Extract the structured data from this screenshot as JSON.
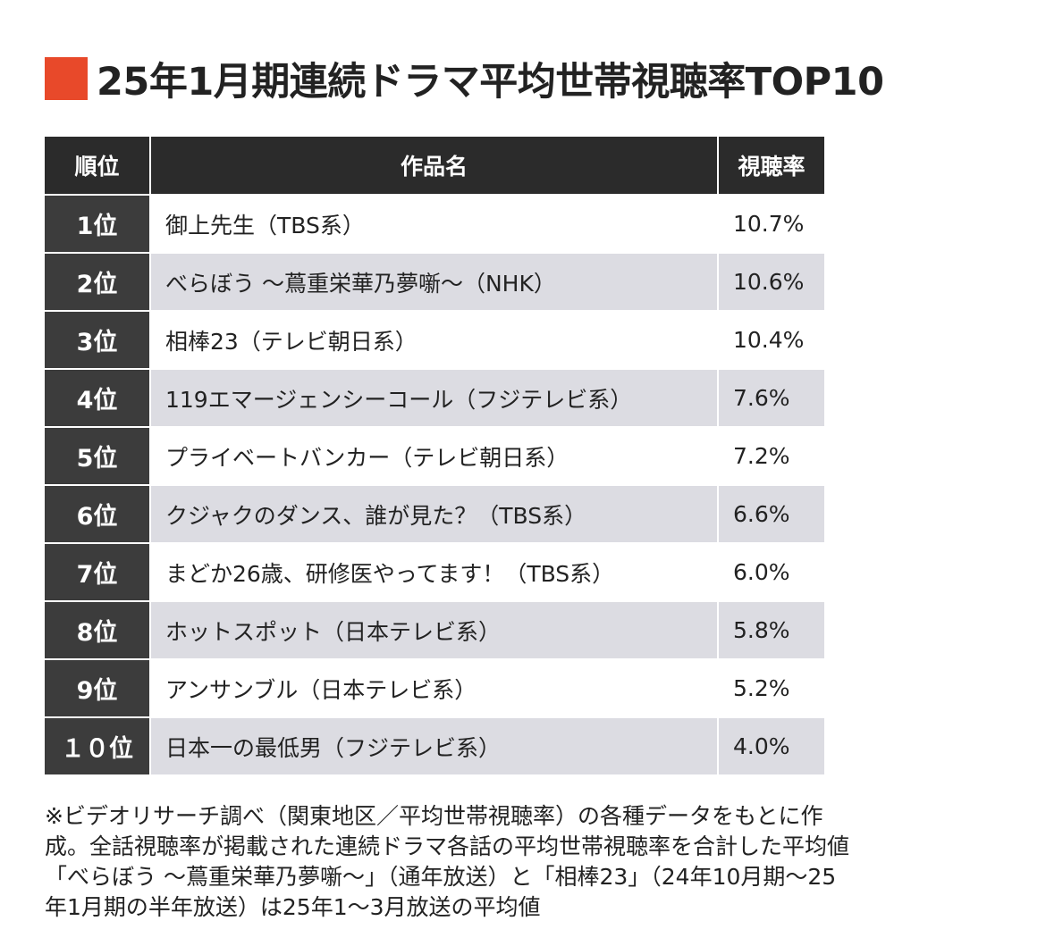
{
  "title": {
    "accent_color": "#e8492a",
    "mark_icon": "square-icon",
    "text": "25年1月期連続ドラマ平均世帯視聴率TOP10"
  },
  "table": {
    "headers": {
      "rank": "順位",
      "title": "作品名",
      "rate": "視聴率"
    },
    "rows": [
      {
        "rank": "1位",
        "title": "御上先生（TBS系）",
        "rate": "10.7%"
      },
      {
        "rank": "2位",
        "title": "べらぼう ～蔦重栄華乃夢噺～（NHK）",
        "rate": "10.6%"
      },
      {
        "rank": "3位",
        "title": "相棒23（テレビ朝日系）",
        "rate": "10.4%"
      },
      {
        "rank": "4位",
        "title": "119エマージェンシーコール（フジテレビ系）",
        "rate": "7.6%"
      },
      {
        "rank": "5位",
        "title": "プライベートバンカー（テレビ朝日系）",
        "rate": "7.2%"
      },
      {
        "rank": "6位",
        "title": "クジャクのダンス、誰が見た？（TBS系）",
        "rate": "6.6%"
      },
      {
        "rank": "7位",
        "title": "まどか26歳、研修医やってます！（TBS系）",
        "rate": "6.0%"
      },
      {
        "rank": "8位",
        "title": "ホットスポット（日本テレビ系）",
        "rate": "5.8%"
      },
      {
        "rank": "9位",
        "title": "アンサンブル（日本テレビ系）",
        "rate": "5.2%"
      },
      {
        "rank": "１０位",
        "title": "日本一の最低男（フジテレビ系）",
        "rate": "4.0%"
      }
    ],
    "colors": {
      "header_bg": "#2b2b2b",
      "rank_bg": "#3c3c3c",
      "stripe_bg": "#dcdce2"
    }
  },
  "note": {
    "lines": [
      "※ビデオリサーチ調べ（関東地区／平均世帯視聴率）の各種データをもとに作",
      "成。全話視聴率が掲載された連続ドラマ各話の平均世帯視聴率を合計した平均値",
      "「べらぼう ～蔦重栄華乃夢噺～」（通年放送）と「相棒23」（24年10月期～25",
      "年1月期の半年放送）は25年1～3月放送の平均値"
    ]
  }
}
